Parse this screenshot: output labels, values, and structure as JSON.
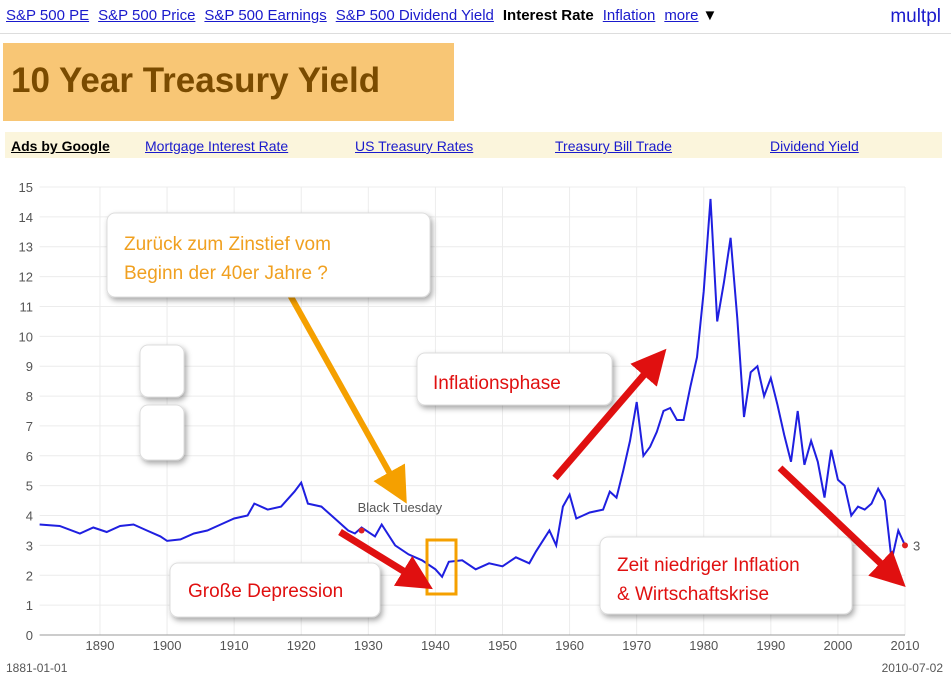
{
  "nav": {
    "links": [
      "S&P 500 PE",
      "S&P 500 Price",
      "S&P 500 Earnings",
      "S&P 500 Dividend Yield",
      "Interest Rate",
      "Inflation",
      "more"
    ],
    "more_icon": "▼",
    "brand": "multpl"
  },
  "header": {
    "title": "10 Year Treasury Yield"
  },
  "ads": {
    "label": "Ads by Google",
    "links": [
      "Mortgage Interest Rate",
      "US Treasury Rates",
      "Treasury Bill Trade",
      "Dividend Yield"
    ]
  },
  "chart_data": {
    "type": "line",
    "color": "#1f1fe0",
    "grid": true,
    "x": [
      1881,
      1884,
      1887,
      1889,
      1891,
      1893,
      1895,
      1897,
      1899,
      1900,
      1902,
      1904,
      1906,
      1908,
      1910,
      1912,
      1913,
      1915,
      1917,
      1919,
      1920,
      1921,
      1923,
      1925,
      1927,
      1928,
      1929,
      1931,
      1932,
      1934,
      1936,
      1938,
      1940,
      1941,
      1942,
      1944,
      1946,
      1948,
      1950,
      1952,
      1954,
      1955,
      1957,
      1958,
      1959,
      1960,
      1961,
      1962,
      1963,
      1965,
      1966,
      1967,
      1968,
      1969,
      1970,
      1971,
      1972,
      1973,
      1974,
      1975,
      1976,
      1977,
      1978,
      1979,
      1980,
      1981,
      1982,
      1983,
      1984,
      1985,
      1986,
      1987,
      1988,
      1989,
      1990,
      1991,
      1992,
      1993,
      1994,
      1995,
      1996,
      1997,
      1998,
      1999,
      2000,
      2001,
      2002,
      2003,
      2004,
      2005,
      2006,
      2007,
      2008,
      2009,
      2010
    ],
    "values": [
      3.7,
      3.65,
      3.4,
      3.6,
      3.45,
      3.65,
      3.7,
      3.5,
      3.3,
      3.15,
      3.2,
      3.4,
      3.5,
      3.7,
      3.9,
      4.0,
      4.4,
      4.2,
      4.3,
      4.8,
      5.1,
      4.4,
      4.3,
      3.9,
      3.5,
      3.4,
      3.6,
      3.3,
      3.7,
      3.0,
      2.7,
      2.5,
      2.2,
      1.95,
      2.45,
      2.5,
      2.2,
      2.4,
      2.3,
      2.6,
      2.4,
      2.8,
      3.5,
      3.0,
      4.3,
      4.7,
      3.9,
      4.0,
      4.1,
      4.2,
      4.8,
      4.6,
      5.5,
      6.5,
      7.8,
      6.0,
      6.3,
      6.8,
      7.5,
      7.6,
      7.2,
      7.2,
      8.3,
      9.3,
      11.5,
      14.6,
      10.5,
      11.8,
      13.3,
      10.6,
      7.3,
      8.8,
      9.0,
      8.0,
      8.6,
      7.7,
      6.7,
      5.8,
      7.5,
      5.7,
      6.5,
      5.8,
      4.6,
      6.2,
      5.2,
      5.0,
      4.0,
      4.3,
      4.2,
      4.4,
      4.9,
      4.5,
      2.5,
      3.5,
      3.0
    ],
    "xlim": [
      1881,
      2010
    ],
    "ylim": [
      0,
      15
    ],
    "xticks": [
      1890,
      1900,
      1910,
      1920,
      1930,
      1940,
      1950,
      1960,
      1970,
      1980,
      1990,
      2000,
      2010
    ],
    "yticks": [
      0,
      1,
      2,
      3,
      4,
      5,
      6,
      7,
      8,
      9,
      10,
      11,
      12,
      13,
      14,
      15
    ],
    "start_label": "1881-01-01",
    "end_label": "2010-07-02",
    "end_value": 3,
    "event": {
      "label": "Black Tuesday",
      "x": 1929,
      "y": 3.5
    },
    "annotations": [
      {
        "lines": [
          "Zurück zum Zinstief vom",
          "Beginn der 40er Jahre ?"
        ],
        "color": "#f0a020"
      },
      {
        "lines": [
          "Inflationsphase"
        ],
        "color": "#e01010"
      },
      {
        "lines": [
          "Große Depression"
        ],
        "color": "#e01010"
      },
      {
        "lines": [
          "Zeit niedriger Inflation",
          "& Wirtschaftskrise"
        ],
        "color": "#e01010"
      }
    ]
  }
}
